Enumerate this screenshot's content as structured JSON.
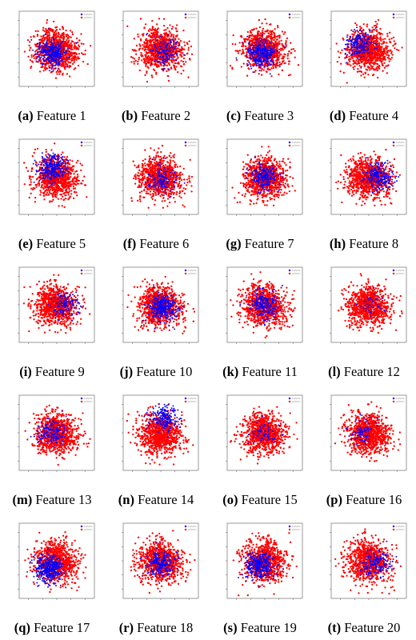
{
  "colors": {
    "series_0": "#ff0000",
    "series_1": "#0000ff",
    "axes": "#555555"
  },
  "legend": {
    "position": "top-right",
    "entries": [
      "",
      ""
    ]
  },
  "panels": [
    {
      "label": "(a)",
      "title": "Feature 1"
    },
    {
      "label": "(b)",
      "title": "Feature 2"
    },
    {
      "label": "(c)",
      "title": "Feature 3"
    },
    {
      "label": "(d)",
      "title": "Feature 4"
    },
    {
      "label": "(e)",
      "title": "Feature 5"
    },
    {
      "label": "(f)",
      "title": "Feature 6"
    },
    {
      "label": "(g)",
      "title": "Feature 7"
    },
    {
      "label": "(h)",
      "title": "Feature 8"
    },
    {
      "label": "(i)",
      "title": "Feature 9"
    },
    {
      "label": "(j)",
      "title": "Feature 10"
    },
    {
      "label": "(k)",
      "title": "Feature 11"
    },
    {
      "label": "(l)",
      "title": "Feature 12"
    },
    {
      "label": "(m)",
      "title": "Feature 13"
    },
    {
      "label": "(n)",
      "title": "Feature 14"
    },
    {
      "label": "(o)",
      "title": "Feature 15"
    },
    {
      "label": "(p)",
      "title": "Feature 16"
    },
    {
      "label": "(q)",
      "title": "Feature 17"
    },
    {
      "label": "(r)",
      "title": "Feature 18"
    },
    {
      "label": "(s)",
      "title": "Feature 19"
    },
    {
      "label": "(t)",
      "title": "Feature 20"
    }
  ],
  "chart_data": {
    "type": "scatter",
    "grid": false,
    "xlim": [
      -4,
      4
    ],
    "ylim": [
      -4,
      4
    ],
    "series_colors": [
      "#ff0000",
      "#0000ff"
    ],
    "blue_density": [
      0.6,
      0.25,
      0.6,
      0.35,
      0.5,
      0.25,
      0.4,
      0.45,
      0.25,
      0.6,
      0.4,
      0.08,
      0.3,
      0.35,
      0.12,
      0.15,
      0.7,
      0.4,
      0.6,
      0.3
    ],
    "blue_center": [
      [
        -0.5,
        -0.5
      ],
      [
        0.5,
        -0.3
      ],
      [
        -0.3,
        -0.5
      ],
      [
        -1.0,
        0.5
      ],
      [
        -0.5,
        1.0
      ],
      [
        0,
        -0.3
      ],
      [
        0,
        0
      ],
      [
        1.0,
        0
      ],
      [
        0.8,
        0
      ],
      [
        0.3,
        -0.3
      ],
      [
        0,
        0
      ],
      [
        0.3,
        0
      ],
      [
        -0.5,
        0
      ],
      [
        0.3,
        1.5
      ],
      [
        0,
        0
      ],
      [
        -0.5,
        0
      ],
      [
        -0.8,
        -0.8
      ],
      [
        0,
        -0.3
      ],
      [
        -0.5,
        -0.5
      ],
      [
        0.8,
        -0.3
      ]
    ]
  }
}
